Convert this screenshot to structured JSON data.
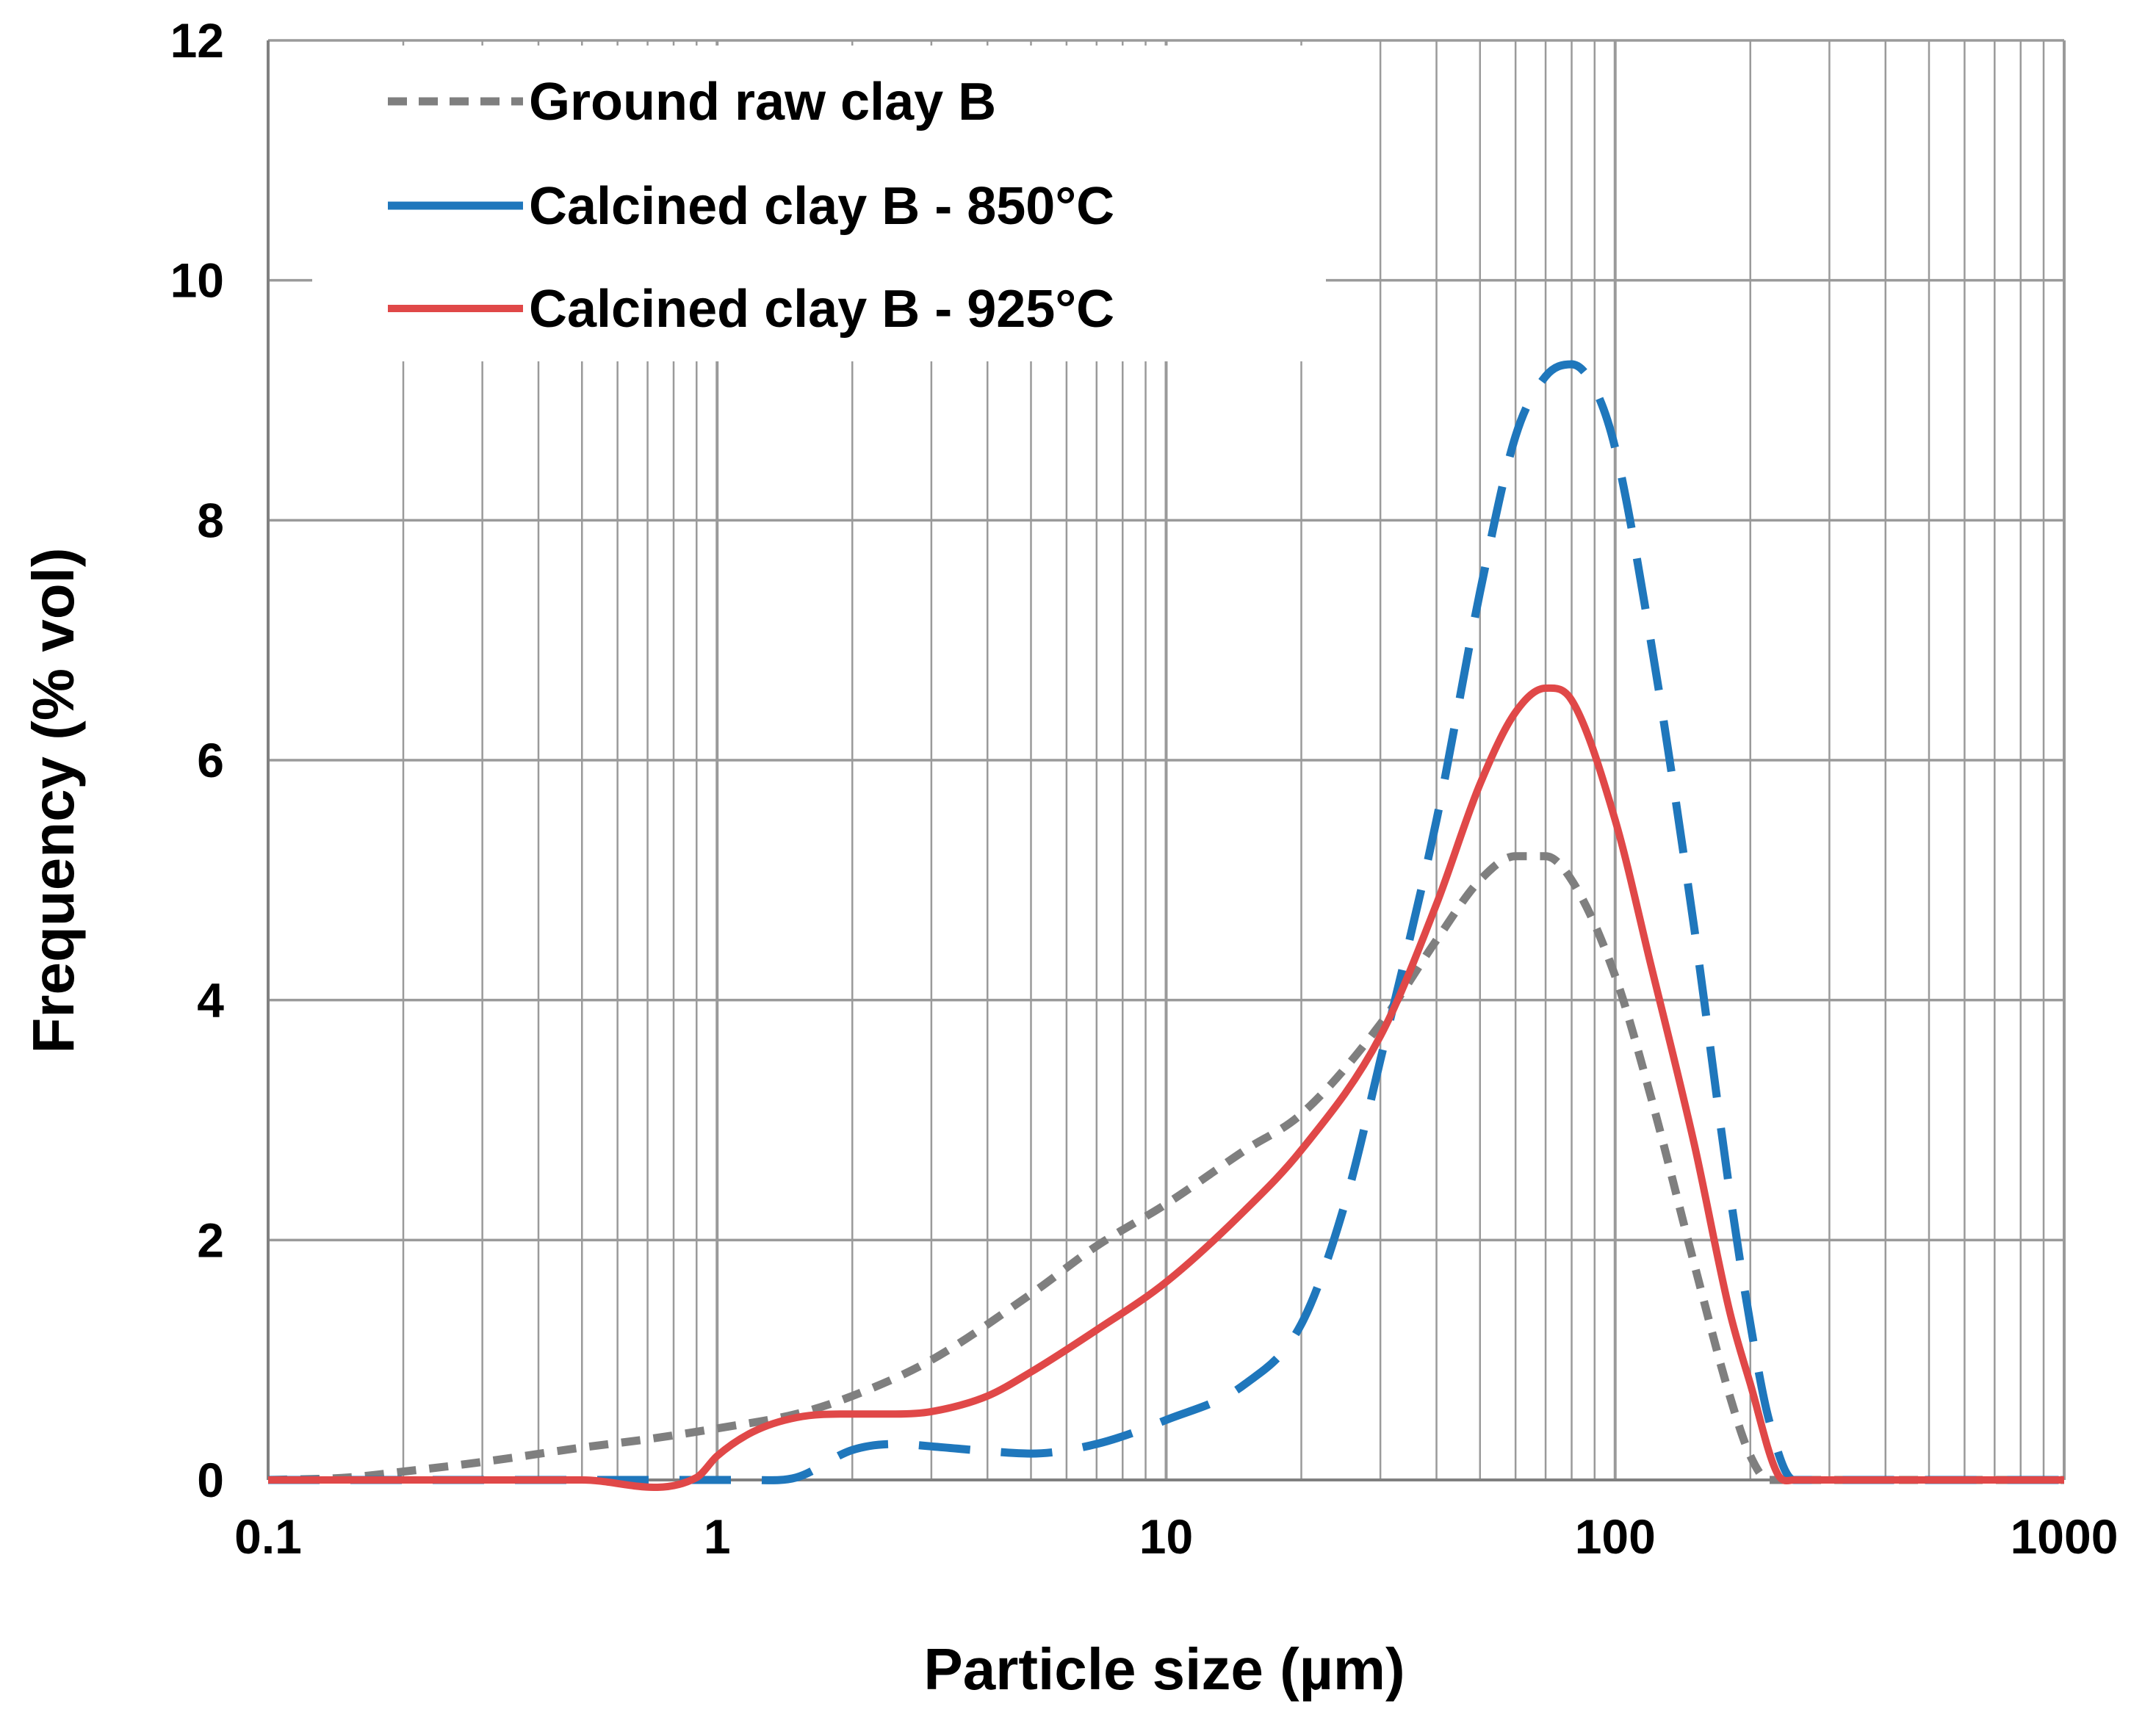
{
  "chart_data": {
    "type": "line",
    "xscale": "log",
    "xlim": [
      0.1,
      1000
    ],
    "ylim": [
      0,
      12
    ],
    "xlabel": "Particle size (µm)",
    "ylabel": "Frequency (% vol)",
    "x_ticks": [
      0.1,
      1,
      10,
      100,
      1000
    ],
    "x_tick_labels": [
      "0.1",
      "1",
      "10",
      "100",
      "1000"
    ],
    "y_ticks": [
      0,
      2,
      4,
      6,
      8,
      10,
      12
    ],
    "y_tick_labels": [
      "0",
      "2",
      "4",
      "6",
      "8",
      "10",
      "12"
    ],
    "grid": true,
    "legend_position": "top-left",
    "series": [
      {
        "name": "Ground raw clay B",
        "color": "#7f7f7f",
        "style": "short-dash",
        "x": [
          0.1,
          0.15,
          0.2,
          0.3,
          0.5,
          0.7,
          1.0,
          1.5,
          2.0,
          3.0,
          5.0,
          7.0,
          10,
          15,
          20,
          30,
          40,
          50,
          60,
          70,
          80,
          100,
          120,
          150,
          180,
          200,
          220,
          250,
          300,
          500,
          1000
        ],
        "y": [
          0,
          0.02,
          0.07,
          0.15,
          0.27,
          0.34,
          0.43,
          0.55,
          0.7,
          1.0,
          1.55,
          1.95,
          2.3,
          2.75,
          3.05,
          3.8,
          4.5,
          5.0,
          5.2,
          5.2,
          5.0,
          4.2,
          3.2,
          1.8,
          0.7,
          0.2,
          0,
          0,
          0,
          0,
          0
        ]
      },
      {
        "name": "Calcined clay B - 850°C",
        "color": "#1f77bc",
        "style": "long-dash",
        "x": [
          0.1,
          0.5,
          0.95,
          1.0,
          1.2,
          1.5,
          2.0,
          2.5,
          3.0,
          4.0,
          5.0,
          7.0,
          10,
          15,
          20,
          25,
          30,
          40,
          50,
          60,
          70,
          80,
          90,
          100,
          120,
          150,
          180,
          200,
          220,
          250,
          300,
          500,
          1000
        ],
        "y": [
          0,
          0,
          0,
          0,
          0,
          0.02,
          0.25,
          0.3,
          0.28,
          0.24,
          0.22,
          0.3,
          0.5,
          0.8,
          1.3,
          2.3,
          3.5,
          5.5,
          7.4,
          8.7,
          9.2,
          9.3,
          9.1,
          8.6,
          7.0,
          4.6,
          2.4,
          1.3,
          0.5,
          0,
          0,
          0,
          0
        ]
      },
      {
        "name": "Calcined clay B - 925°C",
        "color": "#e04848",
        "style": "solid",
        "x": [
          0.1,
          0.5,
          0.9,
          1.0,
          1.2,
          1.5,
          2.0,
          2.5,
          3.0,
          4.0,
          5.0,
          7.0,
          10,
          15,
          20,
          30,
          40,
          50,
          60,
          70,
          80,
          100,
          120,
          150,
          180,
          200,
          230,
          250,
          300,
          500,
          1000
        ],
        "y": [
          0,
          0,
          0.02,
          0.2,
          0.4,
          0.52,
          0.55,
          0.55,
          0.57,
          0.7,
          0.9,
          1.25,
          1.65,
          2.25,
          2.75,
          3.7,
          4.8,
          5.8,
          6.4,
          6.6,
          6.5,
          5.5,
          4.3,
          2.8,
          1.4,
          0.8,
          0.05,
          0,
          0,
          0,
          0
        ]
      }
    ]
  }
}
